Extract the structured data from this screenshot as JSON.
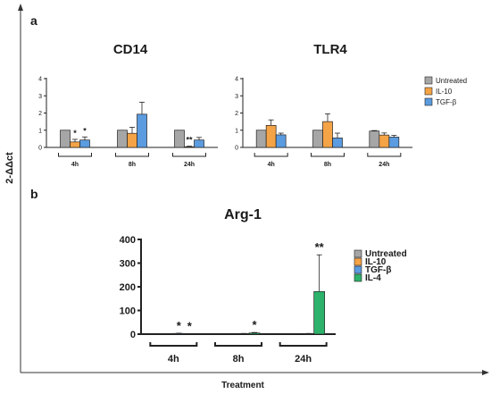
{
  "figure": {
    "panel_a_label": "a",
    "panel_b_label": "b",
    "y_label": "2-ΔΔct",
    "x_label": "Treatment"
  },
  "colors": {
    "Untreated": "#a6a6a6",
    "IL-10": "#f4a346",
    "TGF-β": "#5b9bdf",
    "IL-4": "#2db26b"
  },
  "chart_data": [
    {
      "type": "bar",
      "title": "CD14",
      "categories": [
        "4h",
        "8h",
        "24h"
      ],
      "ylim": [
        0,
        4
      ],
      "yticks": [
        0,
        1,
        2,
        3,
        4
      ],
      "grid": false,
      "series": [
        {
          "name": "Untreated",
          "values": [
            1.0,
            1.0,
            1.0
          ],
          "errors": [
            0,
            0,
            0
          ]
        },
        {
          "name": "IL-10",
          "values": [
            0.32,
            0.82,
            0.04
          ],
          "errors": [
            0.15,
            0.35,
            0.03
          ]
        },
        {
          "name": "TGF-β",
          "values": [
            0.43,
            1.93,
            0.43
          ],
          "errors": [
            0.18,
            0.7,
            0.15
          ]
        }
      ],
      "annotations": [
        {
          "category": "4h",
          "series": "IL-10",
          "text": "*"
        },
        {
          "category": "4h",
          "series": "TGF-β",
          "text": "*"
        },
        {
          "category": "24h",
          "series": "IL-10",
          "text": "**"
        }
      ]
    },
    {
      "type": "bar",
      "title": "TLR4",
      "categories": [
        "4h",
        "8h",
        "24h"
      ],
      "ylim": [
        0,
        4
      ],
      "yticks": [
        0,
        1,
        2,
        3,
        4
      ],
      "grid": false,
      "legend": [
        "Untreated",
        "IL-10",
        "TGF-β"
      ],
      "legend_position": "right",
      "series": [
        {
          "name": "Untreated",
          "values": [
            1.0,
            1.0,
            0.95
          ],
          "errors": [
            0,
            0,
            0.03
          ]
        },
        {
          "name": "IL-10",
          "values": [
            1.28,
            1.5,
            0.72
          ],
          "errors": [
            0.32,
            0.45,
            0.12
          ]
        },
        {
          "name": "TGF-β",
          "values": [
            0.73,
            0.55,
            0.6
          ],
          "errors": [
            0.1,
            0.28,
            0.1
          ]
        }
      ],
      "annotations": []
    },
    {
      "type": "bar",
      "title": "Arg-1",
      "categories": [
        "4h",
        "8h",
        "24h"
      ],
      "ylim": [
        0,
        400
      ],
      "yticks": [
        0,
        100,
        200,
        300,
        400
      ],
      "grid": false,
      "legend": [
        "Untreated",
        "IL-10",
        "TGF-β",
        "IL-4"
      ],
      "legend_position": "right",
      "series": [
        {
          "name": "Untreated",
          "values": [
            1,
            1,
            1
          ],
          "errors": [
            0,
            0,
            0
          ]
        },
        {
          "name": "IL-10",
          "values": [
            0.8,
            1.2,
            0.6
          ],
          "errors": [
            0.3,
            0.4,
            0.2
          ]
        },
        {
          "name": "TGF-β",
          "values": [
            3,
            2,
            2
          ],
          "errors": [
            1,
            1,
            1
          ]
        },
        {
          "name": "IL-4",
          "values": [
            1.5,
            5,
            180
          ],
          "errors": [
            0.5,
            2,
            155
          ]
        }
      ],
      "annotations": [
        {
          "category": "4h",
          "series": "TGF-β",
          "text": "*"
        },
        {
          "category": "4h",
          "series": "IL-4",
          "text": "*"
        },
        {
          "category": "8h",
          "series": "IL-4",
          "text": "*"
        },
        {
          "category": "24h",
          "series": "IL-4",
          "text": "**"
        }
      ]
    }
  ]
}
